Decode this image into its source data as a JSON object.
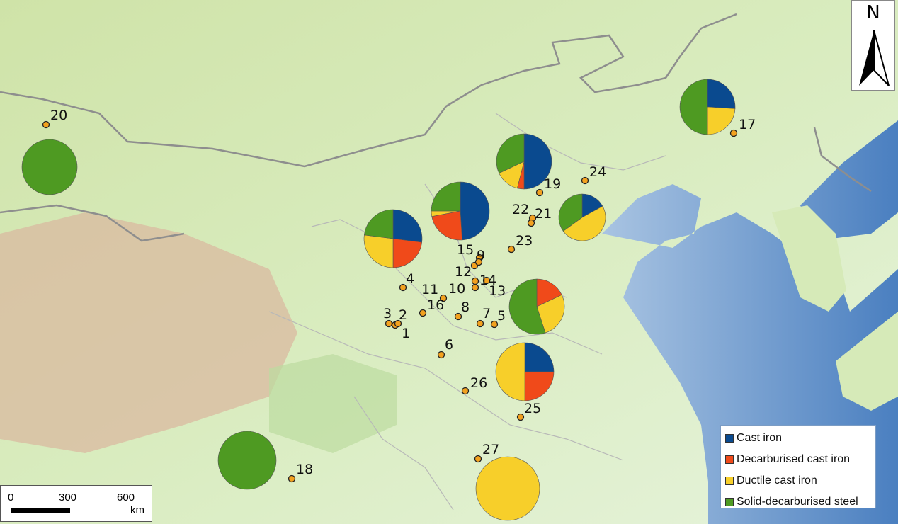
{
  "legend": {
    "items": [
      {
        "label": "Cast iron",
        "color": "#0a4a8f"
      },
      {
        "label": "Decarburised cast iron",
        "color": "#f04a1a"
      },
      {
        "label": "Ductile cast iron",
        "color": "#f7cf2a"
      },
      {
        "label": "Solid-decarburised steel",
        "color": "#4e9a22"
      }
    ]
  },
  "north_arrow": {
    "label": "N"
  },
  "scale_bar": {
    "ticks": [
      "0",
      "300",
      "600"
    ],
    "unit": "km"
  },
  "sites": [
    "1",
    "2",
    "3",
    "4",
    "5",
    "6",
    "7",
    "8",
    "9",
    "10",
    "11",
    "12",
    "13",
    "14",
    "15",
    "16",
    "17",
    "18",
    "19",
    "20",
    "21",
    "22",
    "23",
    "24",
    "25",
    "26",
    "27"
  ],
  "site_marker_color": "#f2a11f",
  "pies": [
    {
      "values": {
        "cast_iron": 0.27,
        "decarburised": 0.23,
        "ductile": 0.27,
        "solid_steel": 0.23
      }
    },
    {
      "values": {
        "cast_iron": 0.49,
        "decarburised": 0.23,
        "ductile": 0.03,
        "solid_steel": 0.25
      }
    },
    {
      "values": {
        "cast_iron": 0.5,
        "decarburised": 0.04,
        "ductile": 0.14,
        "solid_steel": 0.32
      }
    },
    {
      "values": {
        "cast_iron": 0.17,
        "decarburised": 0,
        "ductile": 0.48,
        "solid_steel": 0.35
      }
    },
    {
      "values": {
        "cast_iron": 0,
        "decarburised": 0.18,
        "ductile": 0.27,
        "solid_steel": 0.55
      }
    },
    {
      "values": {
        "cast_iron": 0.25,
        "decarburised": 0.25,
        "ductile": 0.5,
        "solid_steel": 0
      }
    },
    {
      "values": {
        "cast_iron": 0.26,
        "decarburised": 0,
        "ductile": 0.24,
        "solid_steel": 0.5
      }
    },
    {
      "values": {
        "cast_iron": 0,
        "decarburised": 0,
        "ductile": 0,
        "solid_steel": 1
      }
    },
    {
      "values": {
        "cast_iron": 0,
        "decarburised": 0,
        "ductile": 0,
        "solid_steel": 1
      }
    },
    {
      "values": {
        "cast_iron": 0,
        "decarburised": 0,
        "ductile": 1,
        "solid_steel": 0
      }
    }
  ]
}
